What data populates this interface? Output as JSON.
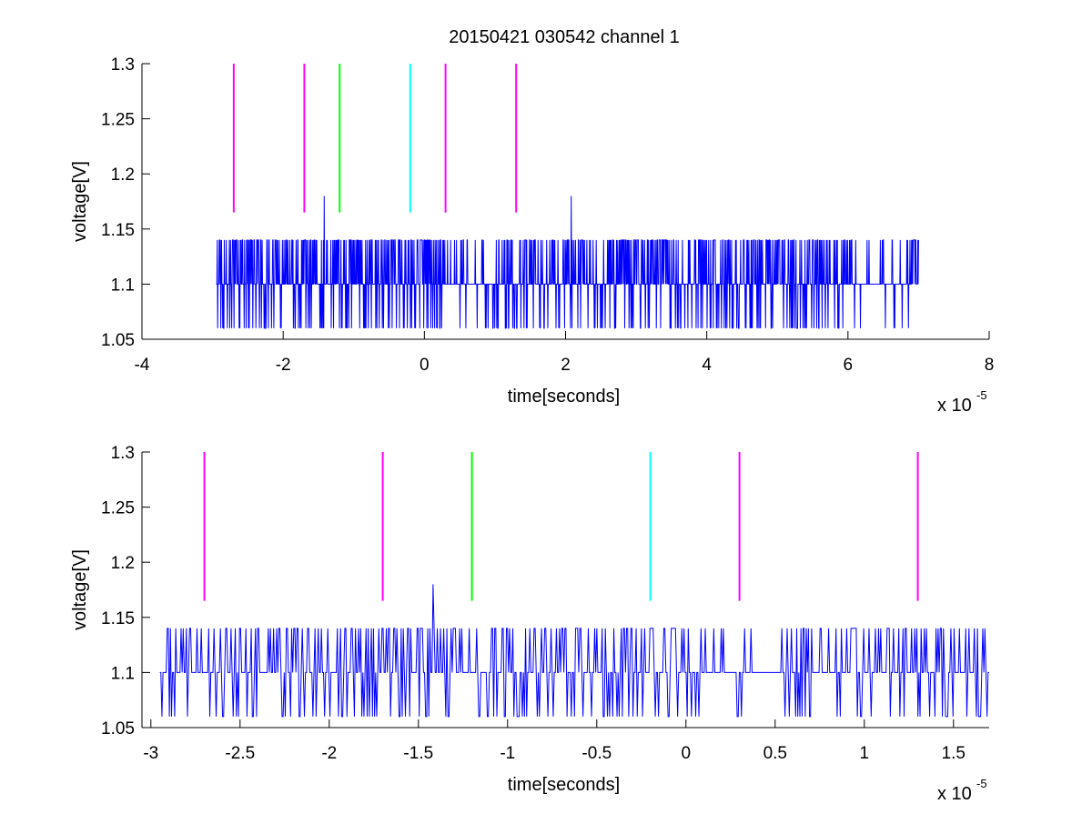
{
  "title": "20150421 030542 channel 1",
  "colors": {
    "trace": "#0000ff",
    "magenta": "#ff00ff",
    "green": "#00ff00",
    "cyan": "#00ffff",
    "axes": "#000000",
    "background": "#ffffff"
  },
  "chart_data": [
    {
      "type": "line",
      "title": "20150421 030542 channel 1",
      "xlabel": "time[seconds]",
      "ylabel": "voltage[V]",
      "x_multiplier": "x 10",
      "x_multiplier_exp": "-5",
      "xlim": [
        -4,
        8
      ],
      "ylim": [
        1.05,
        1.3
      ],
      "xticks": [
        -4,
        -2,
        0,
        2,
        4,
        6,
        8
      ],
      "xtick_labels": [
        "-4",
        "-2",
        "0",
        "2",
        "4",
        "6",
        "8"
      ],
      "yticks": [
        1.05,
        1.1,
        1.15,
        1.2,
        1.25,
        1.3
      ],
      "ytick_labels": [
        "1.05",
        "1.1",
        "1.15",
        "1.2",
        "1.25",
        "1.3"
      ],
      "grid": false,
      "trace": {
        "x_start": -2.95,
        "x_end": 7.0,
        "levels": [
          1.06,
          1.1,
          1.14
        ],
        "baseline": 1.1,
        "spikes": [
          {
            "x": -1.42,
            "y": 1.18
          },
          {
            "x": 2.08,
            "y": 1.18
          }
        ]
      },
      "markers": [
        {
          "x": -2.7,
          "y_from": 1.165,
          "y_to": 1.3,
          "color": "magenta"
        },
        {
          "x": -1.7,
          "y_from": 1.165,
          "y_to": 1.3,
          "color": "magenta"
        },
        {
          "x": -1.2,
          "y_from": 1.165,
          "y_to": 1.3,
          "color": "green"
        },
        {
          "x": -0.2,
          "y_from": 1.165,
          "y_to": 1.3,
          "color": "cyan"
        },
        {
          "x": 0.3,
          "y_from": 1.165,
          "y_to": 1.3,
          "color": "magenta"
        },
        {
          "x": 1.3,
          "y_from": 1.165,
          "y_to": 1.3,
          "color": "magenta"
        }
      ]
    },
    {
      "type": "line",
      "xlabel": "time[seconds]",
      "ylabel": "voltage[V]",
      "x_multiplier": "x 10",
      "x_multiplier_exp": "-5",
      "xlim": [
        -3.05,
        1.7
      ],
      "ylim": [
        1.05,
        1.3
      ],
      "xticks": [
        -3,
        -2.5,
        -2,
        -1.5,
        -1,
        -0.5,
        0,
        0.5,
        1,
        1.5
      ],
      "xtick_labels": [
        "-3",
        "-2.5",
        "-2",
        "-1.5",
        "-1",
        "-0.5",
        "0",
        "0.5",
        "1",
        "1.5"
      ],
      "yticks": [
        1.05,
        1.1,
        1.15,
        1.2,
        1.25,
        1.3
      ],
      "ytick_labels": [
        "1.05",
        "1.1",
        "1.15",
        "1.2",
        "1.25",
        "1.3"
      ],
      "grid": false,
      "trace": {
        "x_start": -2.95,
        "x_end": 1.7,
        "levels": [
          1.06,
          1.1,
          1.14
        ],
        "baseline": 1.1,
        "spikes": [
          {
            "x": -1.42,
            "y": 1.18
          }
        ]
      },
      "markers": [
        {
          "x": -2.7,
          "y_from": 1.165,
          "y_to": 1.3,
          "color": "magenta"
        },
        {
          "x": -1.7,
          "y_from": 1.165,
          "y_to": 1.3,
          "color": "magenta"
        },
        {
          "x": -1.2,
          "y_from": 1.165,
          "y_to": 1.3,
          "color": "green"
        },
        {
          "x": -0.2,
          "y_from": 1.165,
          "y_to": 1.3,
          "color": "cyan"
        },
        {
          "x": 0.3,
          "y_from": 1.165,
          "y_to": 1.3,
          "color": "magenta"
        },
        {
          "x": 1.3,
          "y_from": 1.165,
          "y_to": 1.3,
          "color": "magenta"
        }
      ]
    }
  ]
}
